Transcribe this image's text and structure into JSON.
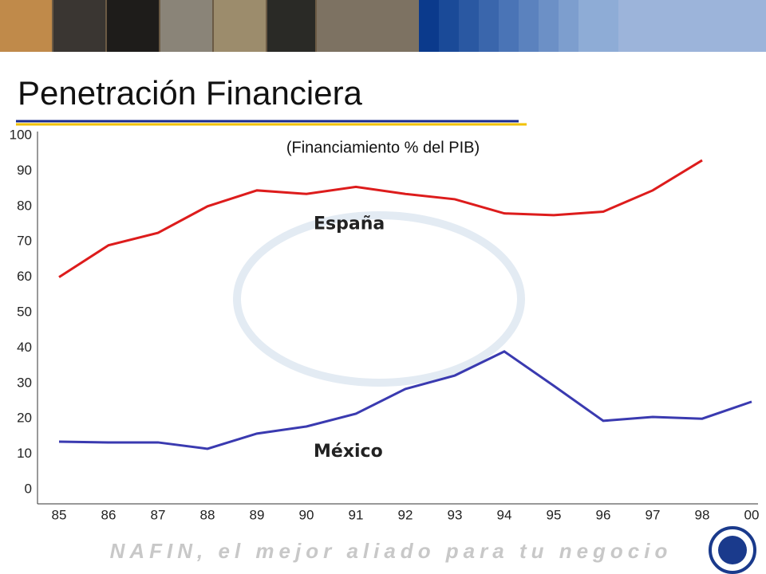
{
  "chart_data": {
    "type": "line",
    "title": "Penetración Financiera",
    "subtitle": "(Financiamiento % del PIB)",
    "footer": "NAFIN, el mejor aliado para tu negocio",
    "categories": [
      "85",
      "86",
      "87",
      "88",
      "89",
      "90",
      "91",
      "92",
      "93",
      "94",
      "95",
      "96",
      "97",
      "98",
      "00"
    ],
    "series": [
      {
        "name": "España",
        "color": "#dd1c1c",
        "values": [
          60,
          69,
          72.5,
          80,
          84.5,
          83.5,
          85.5,
          83.5,
          82,
          78,
          77.5,
          78.5,
          84.5,
          93,
          null
        ]
      },
      {
        "name": "México",
        "color": "#3a3ab0",
        "values": [
          13.5,
          13.3,
          13.3,
          11.5,
          15.8,
          17.8,
          21.4,
          28.4,
          32.2,
          39,
          29.3,
          19.4,
          20.5,
          20,
          24.8
        ]
      }
    ],
    "ylim": [
      0,
      100
    ],
    "yticks": [
      0,
      10,
      20,
      30,
      40,
      50,
      60,
      70,
      80,
      90,
      100
    ]
  }
}
